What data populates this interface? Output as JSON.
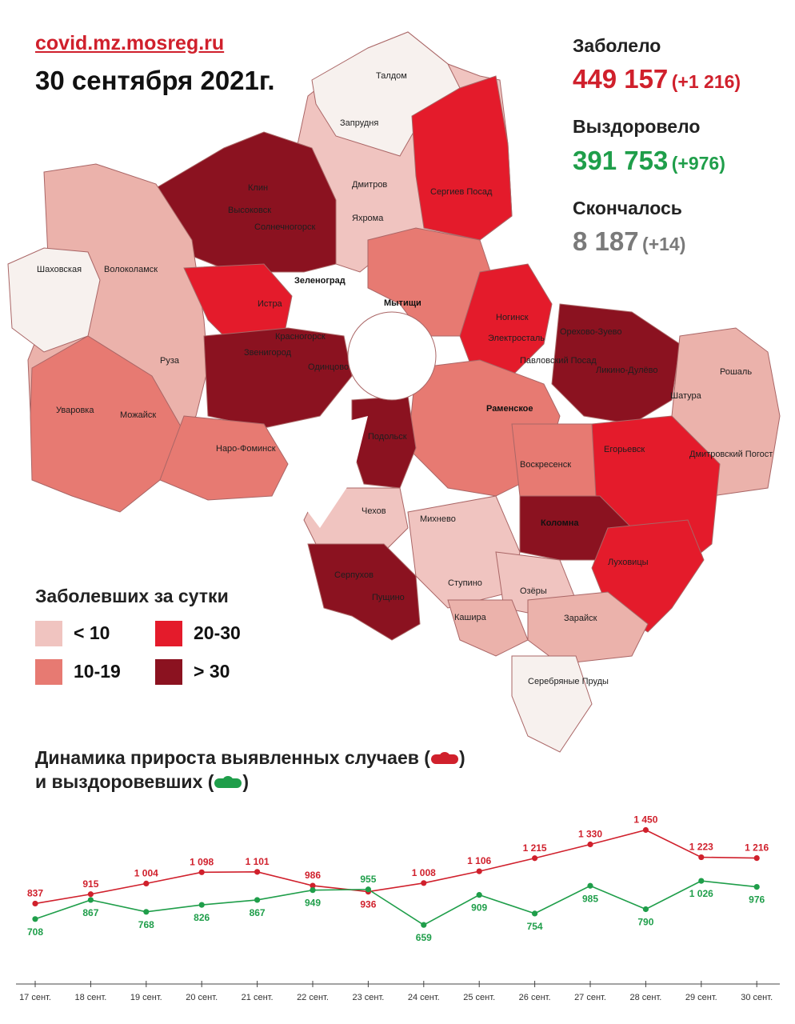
{
  "header": {
    "source": "covid.mz.mosreg.ru",
    "date": "30 сентября 2021г."
  },
  "stats": {
    "infected": {
      "label": "Заболело",
      "value": "449 157",
      "delta": "(+1 216)",
      "color": "#d0202c"
    },
    "recovered": {
      "label": "Выздоровело",
      "value": "391 753",
      "delta": "(+976)",
      "color": "#1f9e4a"
    },
    "died": {
      "label": "Скончалось",
      "value": "8 187",
      "delta": "(+14)",
      "color": "#7a7a7a"
    }
  },
  "legend": {
    "title": "Заболевших за сутки",
    "items": [
      {
        "label": "< 10",
        "color": "#f0c4c0"
      },
      {
        "label": "20-30",
        "color": "#e41b2b"
      },
      {
        "label": "10-19",
        "color": "#e77a72"
      },
      {
        "label": "> 30",
        "color": "#8b1220"
      }
    ]
  },
  "map": {
    "labels": [
      "Талдом",
      "Запрудня",
      "Клин",
      "Высоковск",
      "Дмитров",
      "Сергиев Посад",
      "Яхрома",
      "Солнечногорск",
      "Шаховская",
      "Волоколамск",
      "Зеленоград",
      "Мытищи",
      "Истра",
      "Ногинск",
      "Красногорск",
      "Электросталь",
      "Орехово-Зуево",
      "Звенигород",
      "Павловский Посад",
      "Руза",
      "Одинцово",
      "Ликино-Дулёво",
      "Рошаль",
      "Раменское",
      "Шатура",
      "Уваровка",
      "Можайск",
      "Наро-Фоминск",
      "Егорьевск",
      "Подольск",
      "Воскресенск",
      "Дмитровский Погост",
      "Чехов",
      "Михнево",
      "Коломна",
      "Луховицы",
      "Серпухов",
      "Пущино",
      "Ступино",
      "Озёры",
      "Кашира",
      "Зарайск",
      "Серебряные Пруды"
    ]
  },
  "dynamics": {
    "title_line1": "Динамика прироста выявленных случаев (",
    "title_line1_end": ")",
    "title_line2": "и выздоровевших (",
    "title_line2_end": ")"
  },
  "chart_data": {
    "type": "line",
    "categories": [
      "17 сент.",
      "18 сент.",
      "19 сент.",
      "20 сент.",
      "21 сент.",
      "22 сент.",
      "23 сент.",
      "24 сент.",
      "25 сент.",
      "26 сент.",
      "27 сент.",
      "28 сент.",
      "29 сент.",
      "30 сент."
    ],
    "series": [
      {
        "key": "cases",
        "color": "#d0202c",
        "values": [
          837,
          915,
          1004,
          1098,
          1101,
          986,
          936,
          1008,
          1106,
          1215,
          1330,
          1450,
          1223,
          1216
        ],
        "labels": [
          "837",
          "915",
          "1 004",
          "1 098",
          "1 101",
          "986",
          "936",
          "1 008",
          "1 106",
          "1 215",
          "1 330",
          "1 450",
          "1 223",
          "1 216"
        ]
      },
      {
        "key": "recovered",
        "color": "#1f9e4a",
        "values": [
          708,
          867,
          768,
          826,
          867,
          949,
          955,
          659,
          909,
          754,
          985,
          790,
          1026,
          976
        ],
        "labels": [
          "708",
          "867",
          "768",
          "826",
          "867",
          "949",
          "955",
          "659",
          "909",
          "754",
          "985",
          "790",
          "1 026",
          "976"
        ]
      }
    ]
  }
}
